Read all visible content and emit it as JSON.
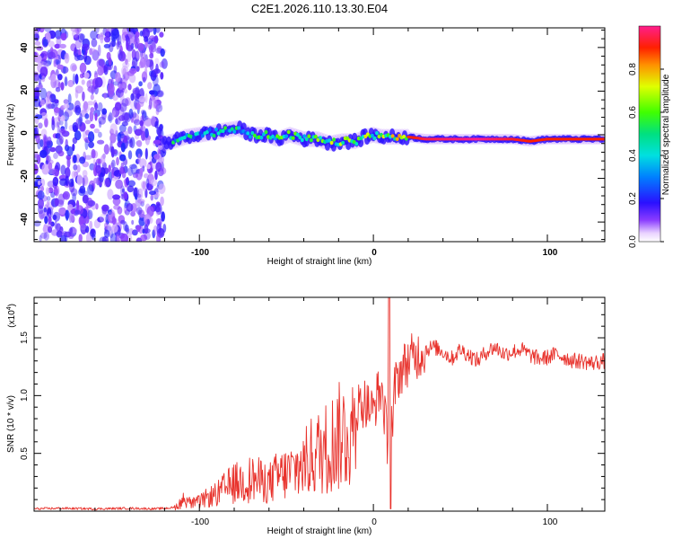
{
  "figure_title": "C2E1.2026.110.13.30.E04",
  "chart_data": [
    {
      "type": "heatmap",
      "title": "C2E1.2026.110.13.30.E04",
      "xlabel": "Height of straight line (km)",
      "ylabel": "Frequency (Hz)",
      "xlim": [
        -195,
        133
      ],
      "ylim": [
        -49,
        49
      ],
      "xticks": [
        -100,
        0,
        100
      ],
      "yticks": [
        -40,
        -20,
        0,
        20,
        40
      ],
      "xtick_labels": [
        "-100",
        "0",
        "100"
      ],
      "ytick_labels": [
        "-40",
        "-20",
        "0",
        "20",
        "40"
      ],
      "ridge": {
        "x": [
          -120,
          -115,
          -108,
          -100,
          -92,
          -85,
          -78,
          -70,
          -62,
          -55,
          -48,
          -40,
          -32,
          -25,
          -18,
          -10,
          -5,
          0,
          5,
          10,
          20,
          30,
          40,
          60,
          80,
          90,
          100,
          133
        ],
        "y": [
          -4,
          -3,
          -1,
          0,
          1,
          2,
          3,
          0,
          0,
          -2,
          0,
          -2,
          -2,
          -4,
          -3,
          -3,
          -1,
          0,
          -1,
          -1,
          -1,
          -2,
          -2,
          -2,
          -2,
          -3,
          -2,
          -2
        ],
        "peak_amplitude_x": [
          -100,
          -80,
          -60,
          -40,
          -20,
          0,
          30,
          60,
          90
        ],
        "peak_amplitude_y": [
          0.55,
          0.6,
          0.7,
          0.65,
          0.8,
          0.75,
          0.95,
          1.0,
          0.9
        ]
      },
      "noise_region_x": [
        -195,
        -120
      ],
      "colorbar": {
        "label": "Normalized spectral amplitude",
        "range": [
          0.0,
          1.0
        ],
        "ticks": [
          0.0,
          0.2,
          0.4,
          0.6,
          0.8
        ],
        "tick_labels": [
          "0.0",
          "0.2",
          "0.4",
          "0.6",
          "0.8"
        ],
        "colormap": "rainbow"
      }
    },
    {
      "type": "line",
      "xlabel": "Height of straight line (km)",
      "ylabel": "SNR (10 * v/v)",
      "y_multiplier_label": "(x10",
      "y_multiplier_exp": "4",
      "y_multiplier_close": ")",
      "xlim": [
        -195,
        133
      ],
      "ylim": [
        0,
        1.85
      ],
      "xticks": [
        -100,
        0,
        100
      ],
      "yticks": [
        0.5,
        1.0,
        1.5
      ],
      "xtick_labels": [
        "-100",
        "0",
        "100"
      ],
      "ytick_labels": [
        "0.5",
        "1.0",
        "1.5"
      ],
      "line_color": "#e8322c",
      "series": [
        {
          "name": "SNR",
          "x": [
            -195,
            -180,
            -160,
            -140,
            -125,
            -115,
            -110,
            -108,
            -105,
            -100,
            -95,
            -90,
            -85,
            -80,
            -75,
            -70,
            -65,
            -60,
            -55,
            -50,
            -45,
            -40,
            -35,
            -30,
            -25,
            -20,
            -15,
            -10,
            -5,
            0,
            2,
            5,
            8,
            9,
            10,
            11,
            12,
            15,
            20,
            25,
            30,
            35,
            40,
            45,
            50,
            55,
            60,
            65,
            70,
            75,
            80,
            85,
            90,
            95,
            100,
            105,
            110,
            115,
            120,
            125,
            133
          ],
          "y": [
            0.02,
            0.025,
            0.02,
            0.025,
            0.02,
            0.03,
            0.1,
            0.15,
            0.08,
            0.1,
            0.15,
            0.18,
            0.25,
            0.3,
            0.32,
            0.35,
            0.33,
            0.3,
            0.38,
            0.4,
            0.45,
            0.5,
            0.6,
            0.65,
            0.72,
            0.8,
            0.85,
            0.9,
            0.95,
            0.85,
            1.0,
            1.05,
            0.6,
            0.2,
            1.3,
            0.5,
            1.05,
            1.2,
            1.3,
            1.35,
            1.4,
            1.42,
            1.38,
            1.32,
            1.4,
            1.35,
            1.3,
            1.38,
            1.42,
            1.36,
            1.38,
            1.4,
            1.35,
            1.32,
            1.33,
            1.36,
            1.33,
            1.3,
            1.3,
            1.28,
            1.3
          ]
        }
      ]
    }
  ]
}
